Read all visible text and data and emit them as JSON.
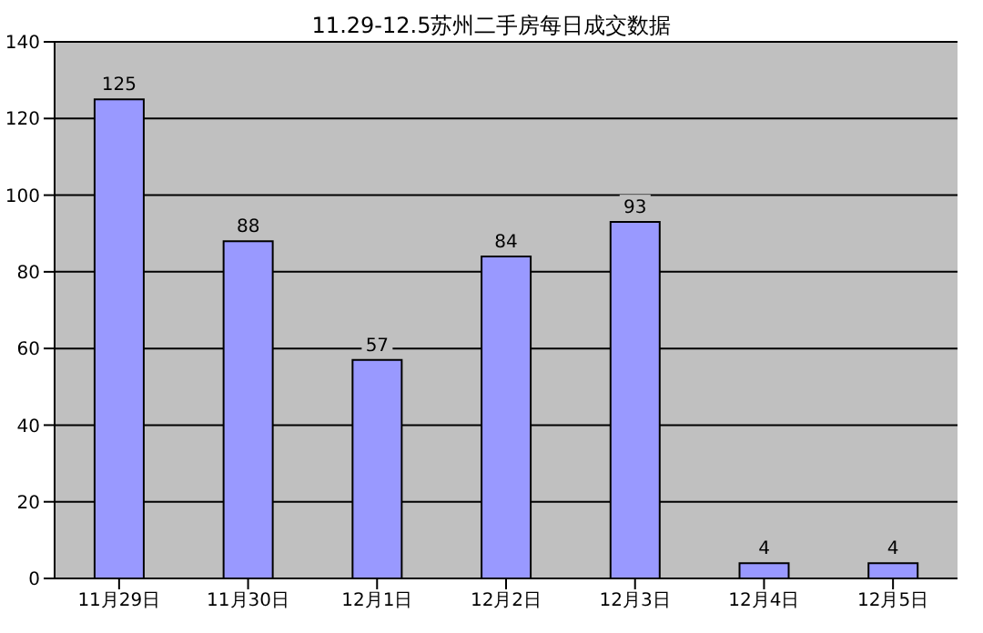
{
  "chart_data": {
    "type": "bar",
    "title": "11.29-12.5苏州二手房每日成交数据",
    "categories": [
      "11月29日",
      "11月30日",
      "12月1日",
      "12月2日",
      "12月3日",
      "12月4日",
      "12月5日"
    ],
    "values": [
      125,
      88,
      57,
      84,
      93,
      4,
      4
    ],
    "color": "#9999ff",
    "ylim": [
      0,
      140
    ],
    "yticks": [
      0,
      20,
      40,
      60,
      80,
      100,
      120,
      140
    ],
    "grid": "y",
    "data_labels": true
  }
}
